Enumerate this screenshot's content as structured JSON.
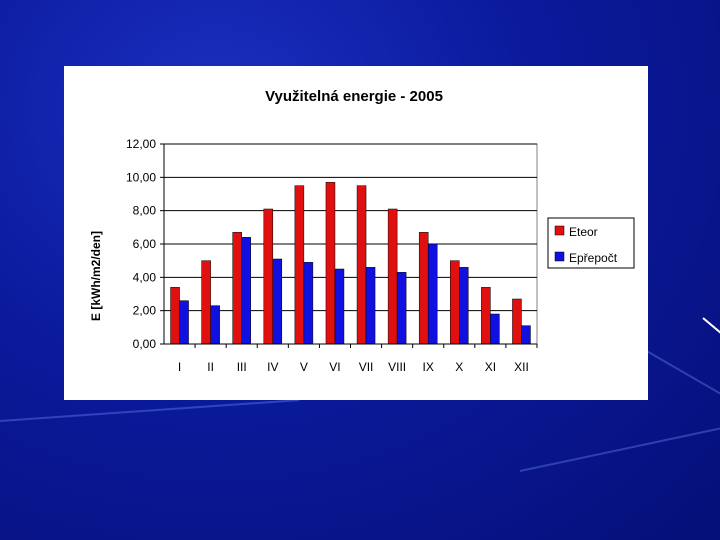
{
  "colors": {
    "background": "#0b1a9c",
    "panel": "#ffffff",
    "series_eteor": "#e01010",
    "series_eprepocet": "#1010e0"
  },
  "chart_data": {
    "type": "bar",
    "title": "Využitelná energie - 2005",
    "xlabel": "",
    "ylabel": "E [kWh/m2/den]",
    "ylim": [
      0,
      12
    ],
    "yticks": [
      "0,00",
      "2,00",
      "4,00",
      "6,00",
      "8,00",
      "10,00",
      "12,00"
    ],
    "categories": [
      "I",
      "II",
      "III",
      "IV",
      "V",
      "VI",
      "VII",
      "VIII",
      "IX",
      "X",
      "XI",
      "XII"
    ],
    "series": [
      {
        "name": "Eteor",
        "values": [
          3.4,
          5.0,
          6.7,
          8.1,
          9.5,
          9.7,
          9.5,
          8.1,
          6.7,
          5.0,
          3.4,
          2.7
        ]
      },
      {
        "name": "Epřepočt",
        "values": [
          2.6,
          2.3,
          6.4,
          5.1,
          4.9,
          4.5,
          4.6,
          4.3,
          6.0,
          4.6,
          1.8,
          1.1
        ]
      }
    ],
    "grid": true,
    "legend_position": "right"
  }
}
